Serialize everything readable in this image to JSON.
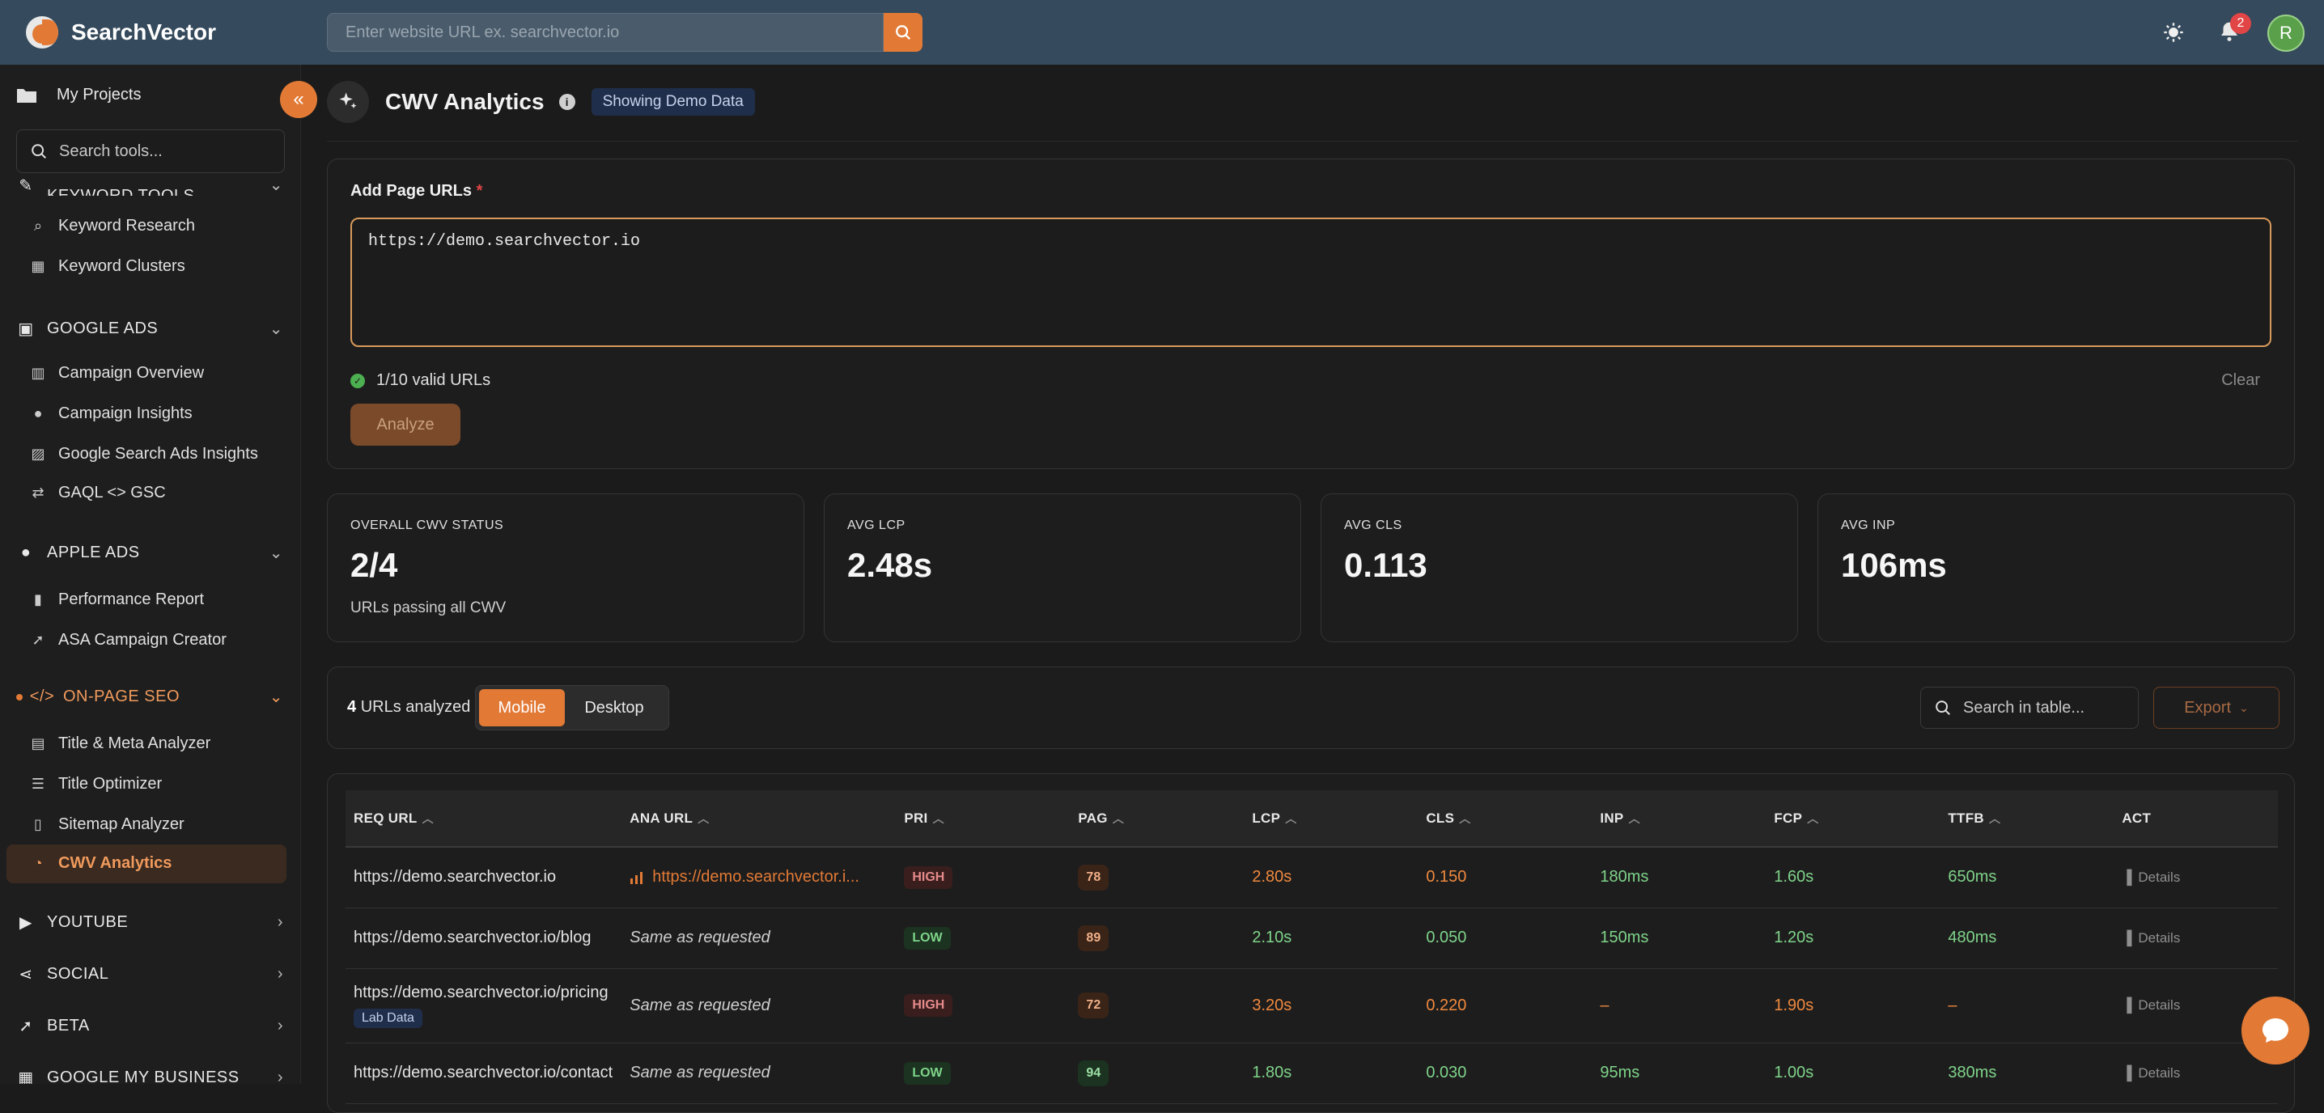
{
  "app": {
    "name": "SearchVector",
    "url_placeholder": "Enter website URL ex. searchvector.io",
    "notification_count": "2",
    "avatar_initial": "R",
    "accent_color": "#e27a36"
  },
  "sidebar": {
    "my_projects": "My Projects",
    "search_placeholder": "Search tools...",
    "sections": [
      {
        "label": "KEYWORD TOOLS",
        "icon": "pen-icon"
      },
      {
        "label": "GOOGLE ADS",
        "icon": "ads-icon"
      },
      {
        "label": "APPLE ADS",
        "icon": "apple-icon"
      },
      {
        "label": "ON-PAGE SEO",
        "icon": "code-icon"
      },
      {
        "label": "YOUTUBE",
        "icon": "video-icon"
      },
      {
        "label": "SOCIAL",
        "icon": "share-icon"
      },
      {
        "label": "BETA",
        "icon": "rocket-icon"
      },
      {
        "label": "GOOGLE MY BUSINESS",
        "icon": "business-icon"
      }
    ],
    "items": [
      {
        "label": "Keyword Research",
        "icon": "search-icon"
      },
      {
        "label": "Keyword Clusters",
        "icon": "grid-icon"
      },
      {
        "label": "Campaign Overview",
        "icon": "columns-icon"
      },
      {
        "label": "Campaign Insights",
        "icon": "bulb-icon"
      },
      {
        "label": "Google Search Ads Insights",
        "icon": "chart-icon"
      },
      {
        "label": "GAQL <> GSC",
        "icon": "swap-icon"
      },
      {
        "label": "Performance Report",
        "icon": "bar-chart-icon"
      },
      {
        "label": "ASA Campaign Creator",
        "icon": "rocket-icon"
      },
      {
        "label": "Title & Meta Analyzer",
        "icon": "file-icon"
      },
      {
        "label": "Title Optimizer",
        "icon": "sliders-icon"
      },
      {
        "label": "Sitemap Analyzer",
        "icon": "map-icon"
      },
      {
        "label": "CWV Analytics",
        "icon": "gauge-icon"
      }
    ]
  },
  "page": {
    "title": "CWV Analytics",
    "badge": "Showing Demo Data"
  },
  "form": {
    "label": "Add Page URLs",
    "required_mark": "*",
    "urls_value": "https://demo.searchvector.io",
    "valid_text": "1/10 valid URLs",
    "clear_label": "Clear",
    "analyze_label": "Analyze"
  },
  "stats": [
    {
      "label": "OVERALL CWV STATUS",
      "value": "2/4",
      "sub": "URLs passing all CWV"
    },
    {
      "label": "AVG LCP",
      "value": "2.48s",
      "sub": ""
    },
    {
      "label": "AVG CLS",
      "value": "0.113",
      "sub": ""
    },
    {
      "label": "AVG INP",
      "value": "106ms",
      "sub": ""
    }
  ],
  "toolbar": {
    "count": "4",
    "count_suffix": "URLs analyzed",
    "mobile": "Mobile",
    "desktop": "Desktop",
    "search_placeholder": "Search in table...",
    "export": "Export"
  },
  "table": {
    "columns": [
      "REQ URL",
      "ANA URL",
      "PRI",
      "PAG",
      "LCP",
      "CLS",
      "INP",
      "FCP",
      "TTFB",
      "ACT"
    ],
    "details_label": "Details",
    "rows": [
      {
        "req": "https://demo.searchvector.io",
        "ana": "https://demo.searchvector.i...",
        "pri": "HIGH",
        "pag": "78",
        "lcp": "2.80s",
        "cls": "0.150",
        "inp": "180ms",
        "fcp": "1.60s",
        "ttfb": "650ms",
        "lab": ""
      },
      {
        "req": "https://demo.searchvector.io/blog",
        "ana": "Same as requested",
        "pri": "LOW",
        "pag": "89",
        "lcp": "2.10s",
        "cls": "0.050",
        "inp": "150ms",
        "fcp": "1.20s",
        "ttfb": "480ms",
        "lab": ""
      },
      {
        "req": "https://demo.searchvector.io/pricing",
        "ana": "Same as requested",
        "pri": "HIGH",
        "pag": "72",
        "lcp": "3.20s",
        "cls": "0.220",
        "inp": "–",
        "fcp": "1.90s",
        "ttfb": "–",
        "lab": "Lab Data"
      },
      {
        "req": "https://demo.searchvector.io/contact",
        "ana": "Same as requested",
        "pri": "LOW",
        "pag": "94",
        "lcp": "1.80s",
        "cls": "0.030",
        "inp": "95ms",
        "fcp": "1.00s",
        "ttfb": "380ms",
        "lab": ""
      }
    ]
  }
}
